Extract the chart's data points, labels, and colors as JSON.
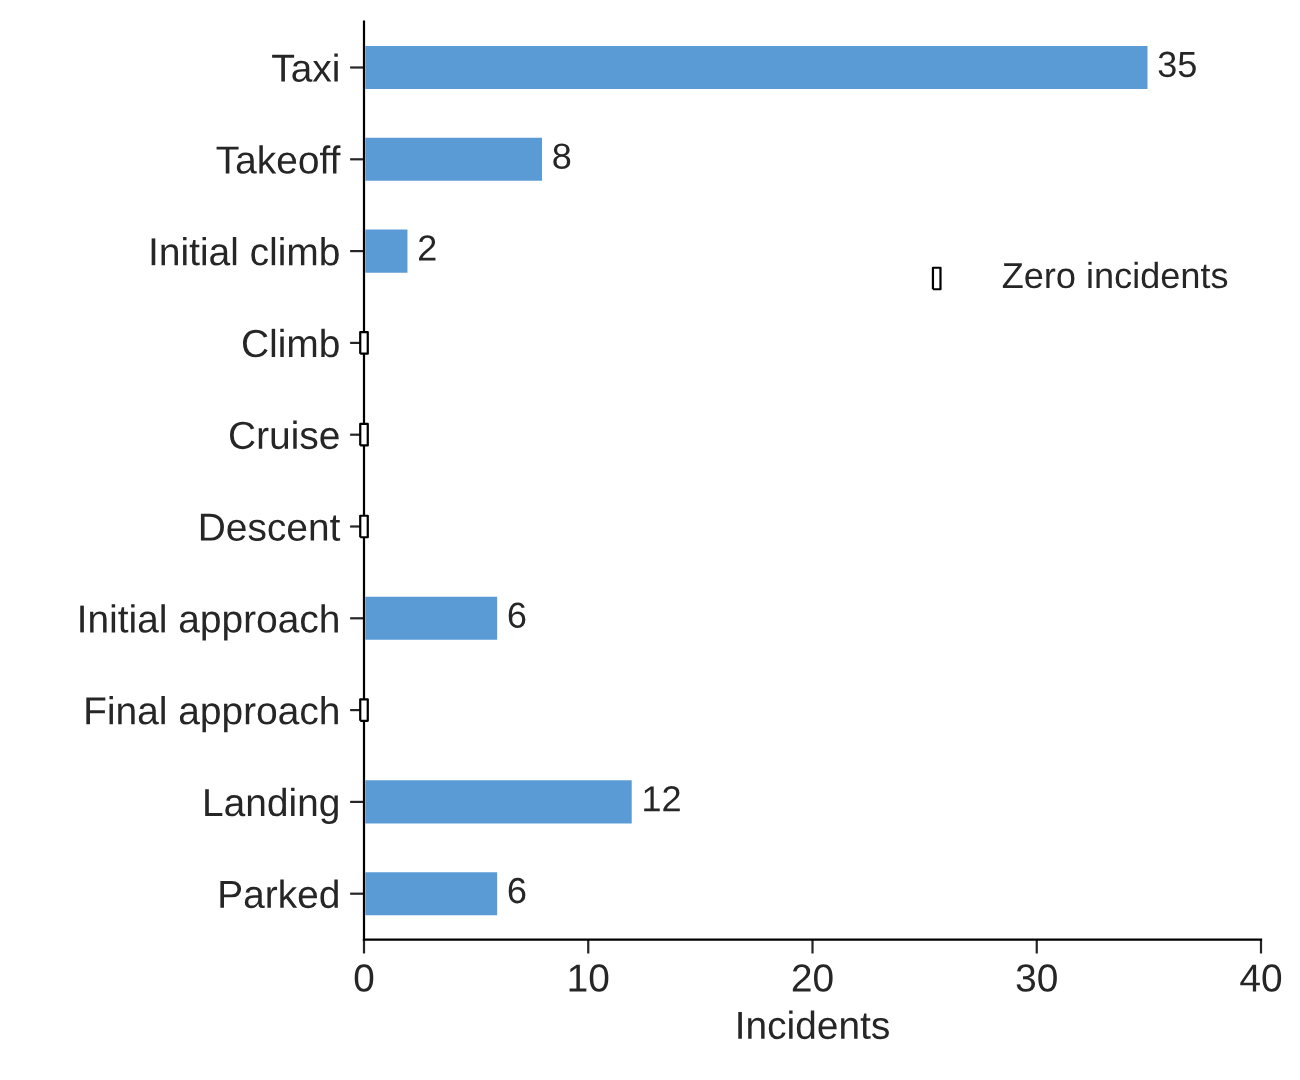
{
  "chart_data": {
    "type": "bar",
    "orientation": "horizontal",
    "xlabel": "Incidents",
    "categories": [
      "Taxi",
      "Takeoff",
      "Initial climb",
      "Climb",
      "Cruise",
      "Descent",
      "Initial approach",
      "Final approach",
      "Landing",
      "Parked"
    ],
    "series": [
      {
        "color": "#5b9bd5",
        "values": [
          35,
          8,
          2,
          null,
          null,
          null,
          6,
          null,
          12,
          6
        ],
        "value_labels": [
          "35",
          "8",
          "2",
          null,
          null,
          null,
          "6",
          null,
          "12",
          "6"
        ]
      },
      {
        "name": "Zero incidents",
        "type": "scatter",
        "marker": "square",
        "color": "#ffffff",
        "values": [
          null,
          null,
          null,
          0,
          0,
          0,
          null,
          0,
          null,
          null
        ]
      }
    ],
    "xlim": [
      0,
      40
    ],
    "xticks": [
      0,
      10,
      20,
      30,
      40
    ],
    "grid": false,
    "legend": "right"
  }
}
